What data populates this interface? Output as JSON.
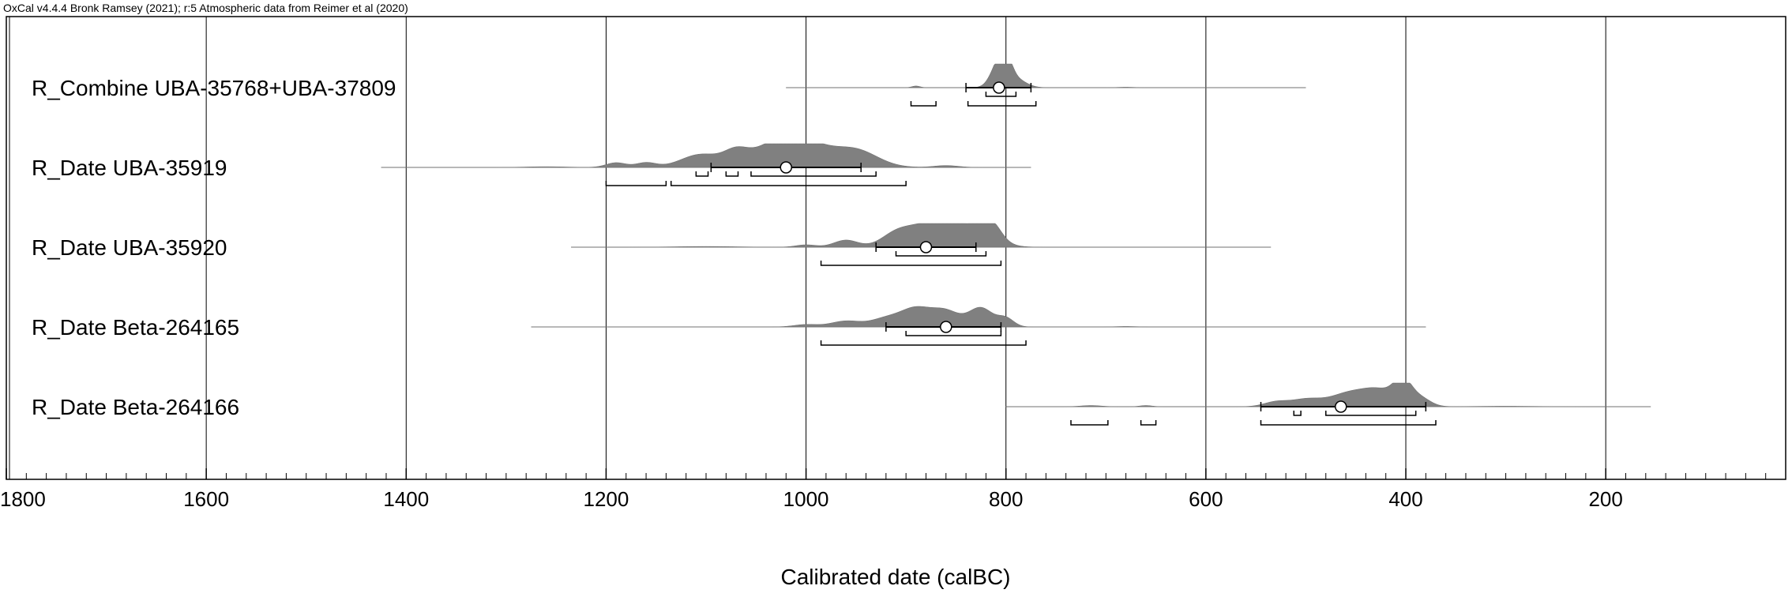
{
  "header": "OxCal v4.4.4 Bronk Ramsey (2021); r:5 Atmospheric data from Reimer et al (2020)",
  "chart_data": {
    "type": "calibration-multiplot",
    "xlabel": "Calibrated date (calBC)",
    "xlim": [
      1800,
      20
    ],
    "major_ticks": [
      1800,
      1600,
      1400,
      1200,
      1000,
      800,
      600,
      400,
      200
    ],
    "tick_labels": [
      "1800",
      "1600",
      "1400",
      "1200",
      "1000",
      "800",
      "600",
      "400",
      "200"
    ],
    "minor_step": 20,
    "grid": true,
    "series": [
      {
        "name": "R_Combine UBA-35768+UBA-37809",
        "line_range": [
          1020,
          500
        ],
        "peaks": [
          [
            890,
            4,
            0.07
          ],
          [
            807,
            8,
            1.0
          ],
          [
            800,
            6,
            0.7
          ],
          [
            790,
            10,
            0.35
          ],
          [
            680,
            8,
            0.02
          ]
        ],
        "mean": 807,
        "sigma_bar": [
          840,
          775
        ],
        "range_68": [
          [
            820,
            790
          ]
        ],
        "range_95": [
          [
            895,
            870
          ],
          [
            838,
            770
          ]
        ]
      },
      {
        "name": "R_Date UBA-35919",
        "line_range": [
          1425,
          775
        ],
        "peaks": [
          [
            1260,
            20,
            0.03
          ],
          [
            1190,
            10,
            0.2
          ],
          [
            1160,
            10,
            0.2
          ],
          [
            1105,
            20,
            0.55
          ],
          [
            1070,
            12,
            0.5
          ],
          [
            1030,
            25,
            0.85
          ],
          [
            1000,
            25,
            0.8
          ],
          [
            950,
            22,
            0.7
          ],
          [
            860,
            12,
            0.08
          ]
        ],
        "mean": 1020,
        "sigma_bar": [
          1095,
          945
        ],
        "range_68": [
          [
            1110,
            1098
          ],
          [
            1080,
            1068
          ],
          [
            1055,
            930
          ]
        ],
        "range_95": [
          [
            1200,
            1140
          ],
          [
            1135,
            900
          ]
        ]
      },
      {
        "name": "R_Date UBA-35920",
        "line_range": [
          1235,
          535
        ],
        "peaks": [
          [
            1000,
            10,
            0.1
          ],
          [
            960,
            12,
            0.3
          ],
          [
            910,
            15,
            0.55
          ],
          [
            880,
            18,
            0.8
          ],
          [
            840,
            22,
            0.9
          ],
          [
            815,
            10,
            0.7
          ],
          [
            1100,
            30,
            0.03
          ]
        ],
        "mean": 880,
        "sigma_bar": [
          930,
          830
        ],
        "range_68": [
          [
            910,
            820
          ]
        ],
        "range_95": [
          [
            985,
            805
          ]
        ]
      },
      {
        "name": "R_Date Beta-264165",
        "line_range": [
          1275,
          380
        ],
        "peaks": [
          [
            1000,
            12,
            0.1
          ],
          [
            960,
            15,
            0.25
          ],
          [
            920,
            15,
            0.35
          ],
          [
            890,
            15,
            0.75
          ],
          [
            860,
            14,
            0.65
          ],
          [
            825,
            12,
            0.8
          ],
          [
            800,
            8,
            0.35
          ],
          [
            680,
            10,
            0.02
          ]
        ],
        "mean": 860,
        "sigma_bar": [
          920,
          805
        ],
        "range_68": [
          [
            900,
            805
          ]
        ],
        "range_95": [
          [
            985,
            780
          ]
        ]
      },
      {
        "name": "R_Date Beta-264166",
        "line_range": [
          800,
          155
        ],
        "peaks": [
          [
            715,
            10,
            0.05
          ],
          [
            660,
            6,
            0.05
          ],
          [
            530,
            12,
            0.2
          ],
          [
            500,
            15,
            0.3
          ],
          [
            455,
            20,
            0.6
          ],
          [
            425,
            15,
            0.55
          ],
          [
            403,
            9,
            1.0
          ],
          [
            385,
            10,
            0.35
          ],
          [
            300,
            30,
            0.02
          ]
        ],
        "mean": 465,
        "sigma_bar": [
          545,
          380
        ],
        "range_68": [
          [
            512,
            505
          ],
          [
            480,
            390
          ]
        ],
        "range_95": [
          [
            735,
            698
          ],
          [
            665,
            650
          ],
          [
            545,
            370
          ]
        ]
      }
    ]
  }
}
